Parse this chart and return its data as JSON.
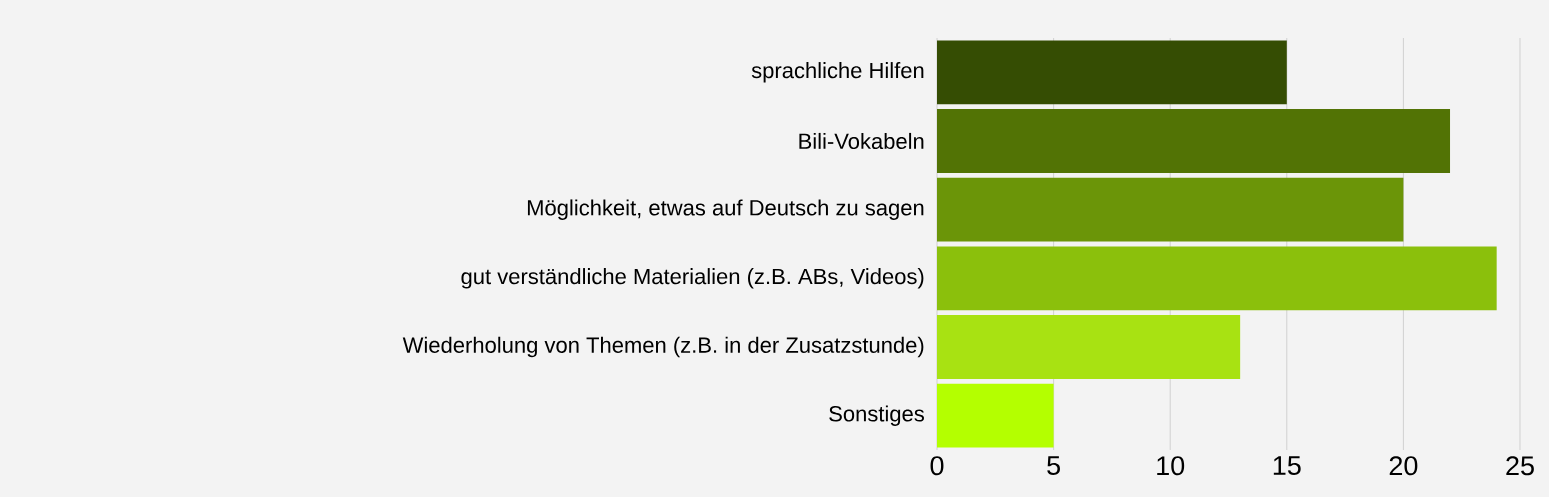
{
  "chart_data": {
    "type": "bar",
    "orientation": "horizontal",
    "categories": [
      "sprachliche Hilfen",
      "Bili-Vokabeln",
      "Möglichkeit, etwas auf Deutsch zu sagen",
      "gut verständliche Materialien (z.B. ABs, Videos)",
      "Wiederholung von Themen (z.B. in der Zusatzstunde)",
      "Sonstiges"
    ],
    "values": [
      15,
      22,
      20,
      24,
      13,
      5
    ],
    "colors": [
      "#354d03",
      "#527305",
      "#6b9508",
      "#8bc00c",
      "#a8e212",
      "#b4ff00"
    ],
    "xlim": [
      0,
      25
    ],
    "xticks": [
      0,
      5,
      10,
      15,
      20,
      25
    ],
    "grid": "x"
  }
}
